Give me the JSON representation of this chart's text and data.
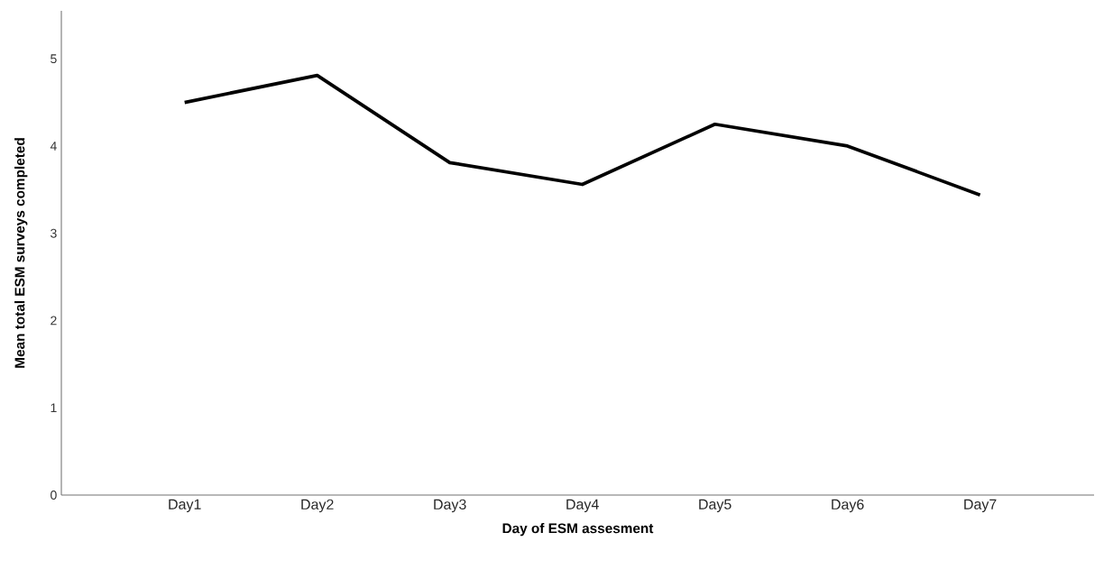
{
  "chart_data": {
    "type": "line",
    "xlabel": "Day of ESM assesment",
    "ylabel": "Mean total ESM surveys completed",
    "categories": [
      "Day1",
      "Day2",
      "Day3",
      "Day4",
      "Day5",
      "Day6",
      "Day7"
    ],
    "series": [
      {
        "color": "#000000",
        "values": [
          4.5,
          4.81,
          3.81,
          3.56,
          4.25,
          4.0,
          3.44
        ]
      }
    ],
    "ylim": [
      0,
      5.55
    ],
    "yticks": [
      0,
      1,
      2,
      3,
      4,
      5
    ],
    "grid": false,
    "marker": "none",
    "line_style": "solid"
  }
}
